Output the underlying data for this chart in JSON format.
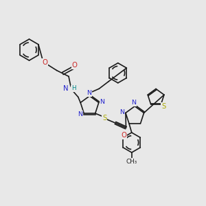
{
  "bg_color": "#e8e8e8",
  "bond_color": "#1a1a1a",
  "N_color": "#2222cc",
  "O_color": "#cc2222",
  "S_color": "#aaaa00",
  "H_color": "#008888",
  "font_size": 6.8,
  "lw": 1.2,
  "xlim": [
    0,
    12
  ],
  "ylim": [
    0,
    12
  ]
}
